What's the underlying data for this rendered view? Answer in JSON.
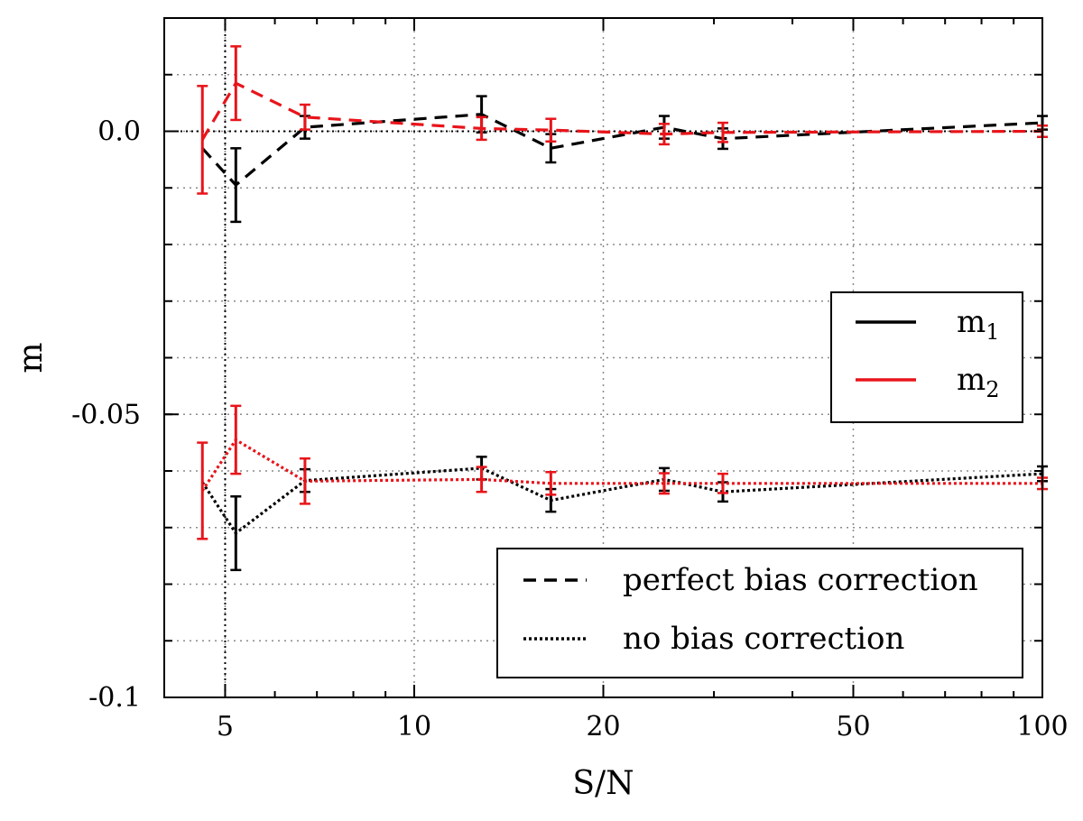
{
  "chart_data": {
    "type": "line",
    "xlabel": "S/N",
    "ylabel": "m",
    "xscale": "log",
    "xlim": [
      4.0,
      100
    ],
    "ylim": [
      -0.1,
      0.02
    ],
    "grid": true,
    "x_ticks": [
      {
        "value": 5,
        "label": "5"
      },
      {
        "value": 10,
        "label": "10"
      },
      {
        "value": 20,
        "label": "20"
      },
      {
        "value": 50,
        "label": "50"
      },
      {
        "value": 100,
        "label": "100"
      }
    ],
    "y_ticks": [
      {
        "value": 0.0,
        "label": "0.0"
      },
      {
        "value": -0.05,
        "label": "-0.05"
      },
      {
        "value": -0.1,
        "label": "-0.1"
      }
    ],
    "reference_lines": {
      "y": 0.0,
      "x": 5
    },
    "series": [
      {
        "component": "m1",
        "correction": "perfect bias correction",
        "color": "#000000",
        "dash": "dashed",
        "x": [
          4.6,
          5.2,
          6.7,
          12.8,
          16.5,
          25,
          31,
          100
        ],
        "y": [
          -0.003,
          -0.0095,
          0.0007,
          0.003,
          -0.003,
          0.0007,
          -0.0013,
          0.0015
        ],
        "err": [
          0.0,
          0.0065,
          0.002,
          0.0032,
          0.0025,
          0.002,
          0.0018,
          0.0012
        ]
      },
      {
        "component": "m2",
        "correction": "perfect bias correction",
        "color": "#e8141a",
        "dash": "dashed",
        "x": [
          4.6,
          5.2,
          6.7,
          12.8,
          16.5,
          25,
          31,
          100
        ],
        "y": [
          -0.0015,
          0.0085,
          0.0025,
          0.0005,
          0.0002,
          -0.0005,
          -0.0002,
          0.0
        ],
        "err": [
          0.0095,
          0.0065,
          0.0022,
          0.002,
          0.002,
          0.0018,
          0.0017,
          0.001
        ]
      },
      {
        "component": "m1",
        "correction": "no bias correction",
        "color": "#000000",
        "dash": "dotted",
        "x": [
          4.6,
          5.2,
          6.7,
          12.8,
          16.5,
          25,
          31,
          100
        ],
        "y": [
          -0.062,
          -0.071,
          -0.0617,
          -0.0595,
          -0.0652,
          -0.0615,
          -0.0637,
          -0.0605
        ],
        "err": [
          0.0,
          0.0065,
          0.002,
          0.002,
          0.002,
          0.002,
          0.0017,
          0.0013
        ]
      },
      {
        "component": "m2",
        "correction": "no bias correction",
        "color": "#e8141a",
        "dash": "dotted",
        "x": [
          4.6,
          5.2,
          6.7,
          12.8,
          16.5,
          25,
          31,
          100
        ],
        "y": [
          -0.0635,
          -0.0545,
          -0.0618,
          -0.0615,
          -0.0622,
          -0.0622,
          -0.0622,
          -0.0622
        ],
        "err": [
          0.0085,
          0.006,
          0.004,
          0.0022,
          0.002,
          0.0018,
          0.0017,
          0.001
        ]
      }
    ],
    "legends": [
      {
        "position": "center-right",
        "entries": [
          {
            "label": "m",
            "sub": "1",
            "color": "#000000",
            "dash": "solid"
          },
          {
            "label": "m",
            "sub": "2",
            "color": "#e8141a",
            "dash": "solid"
          }
        ]
      },
      {
        "position": "bottom-right",
        "entries": [
          {
            "label": "perfect bias correction",
            "color": "#000000",
            "dash": "dashed"
          },
          {
            "label": "no bias correction",
            "color": "#000000",
            "dash": "dotted"
          }
        ]
      }
    ]
  }
}
